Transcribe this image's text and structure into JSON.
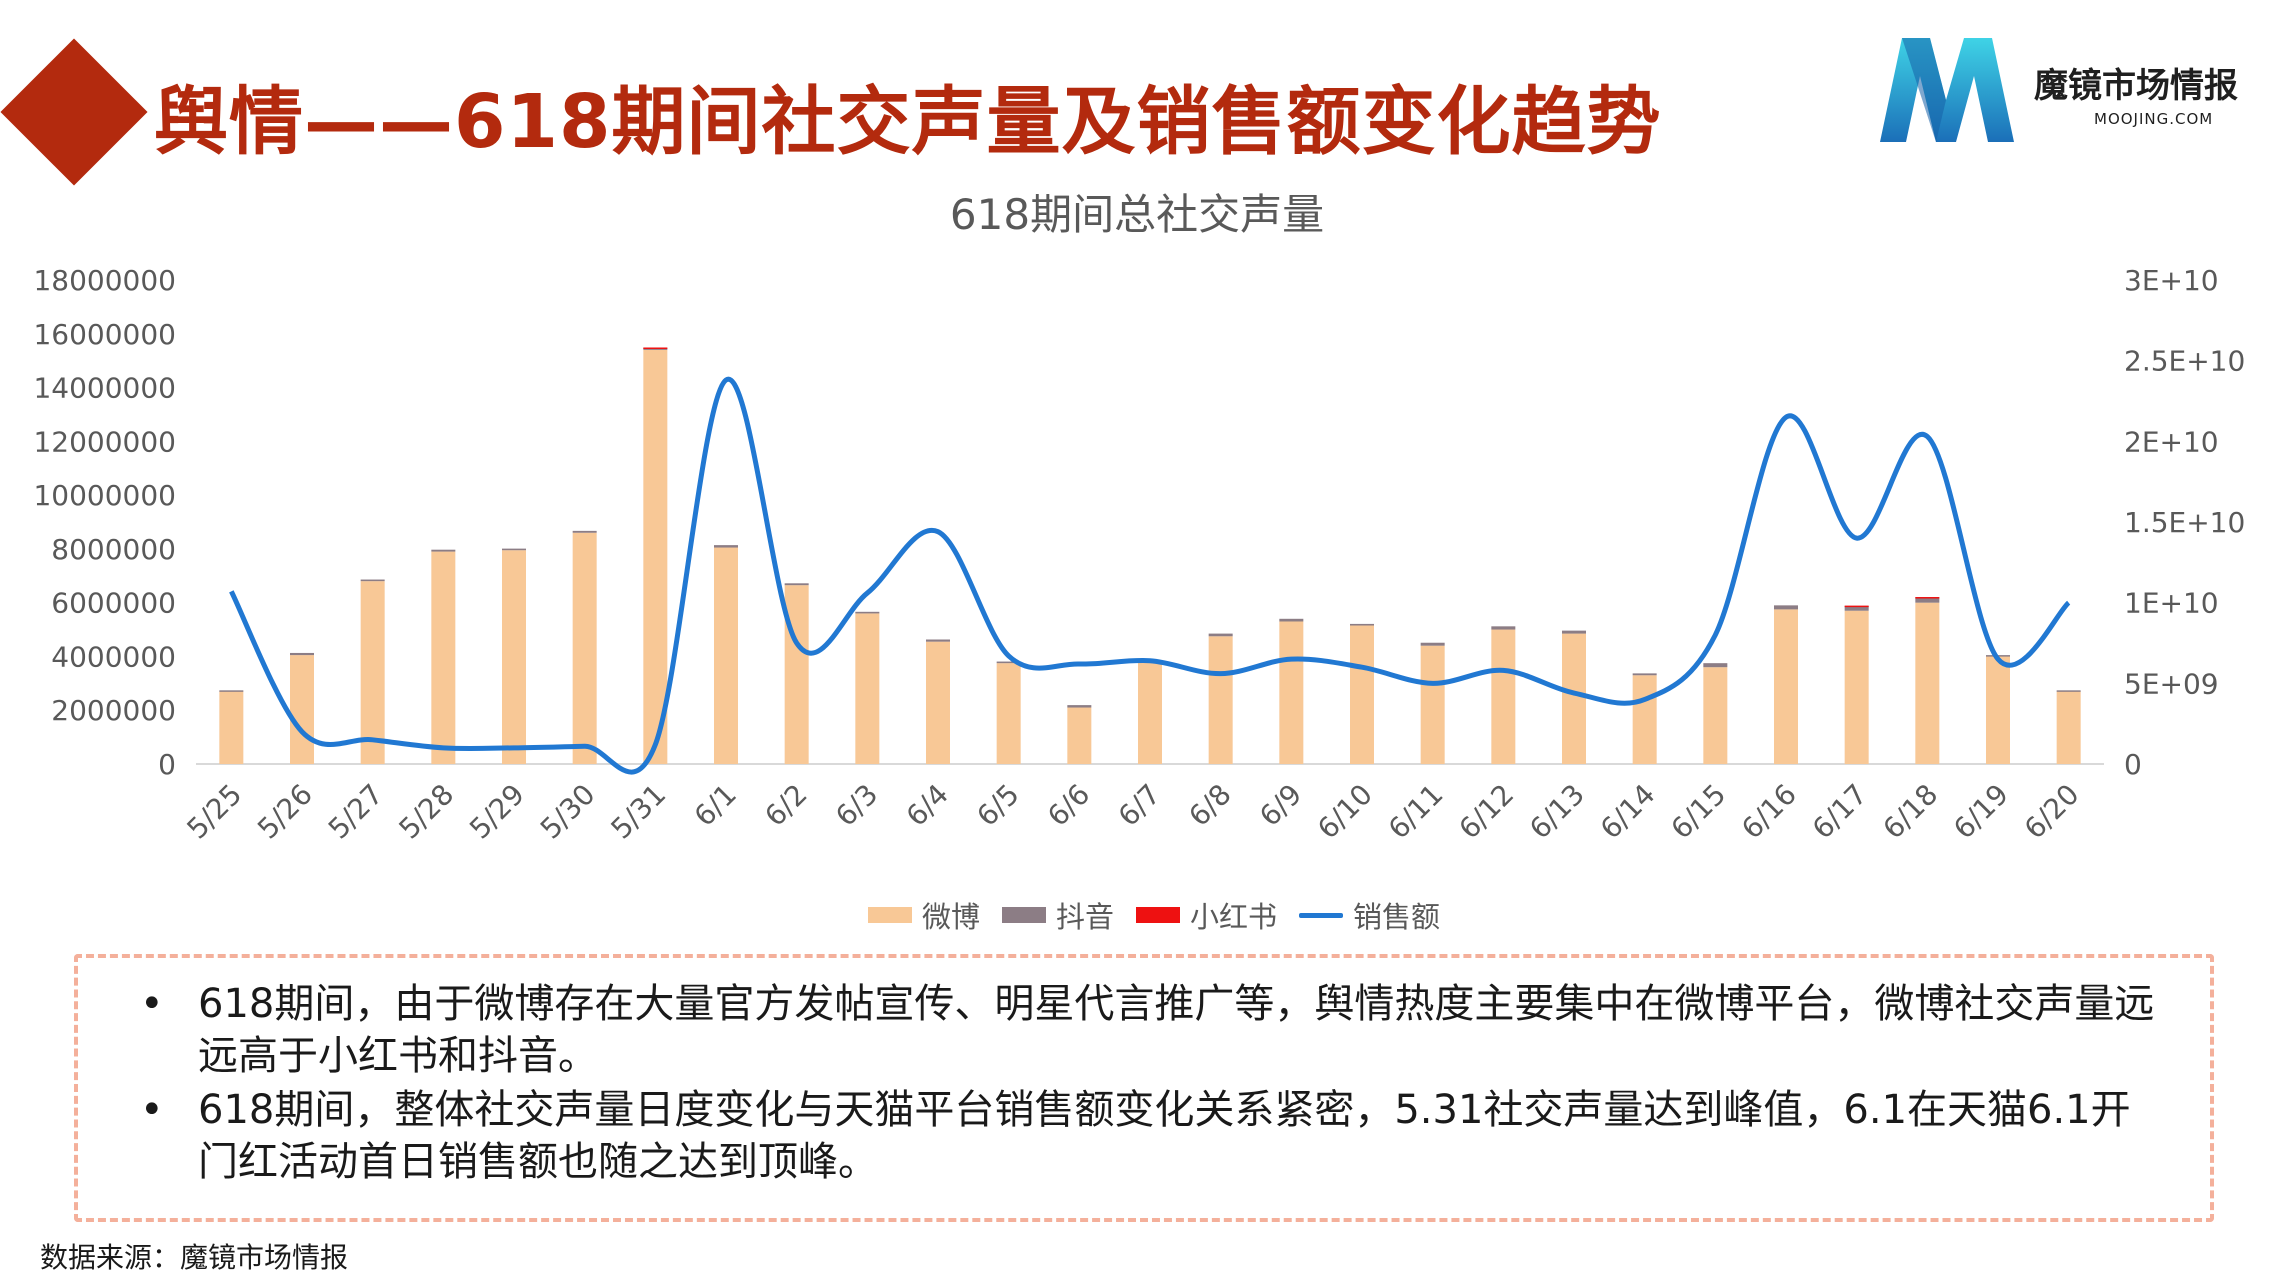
{
  "header": {
    "title": "舆情——618期间社交声量及销售额变化趋势"
  },
  "logo": {
    "name": "魔镜市场情报",
    "url_text": "MOOJING.COM"
  },
  "legend": {
    "items": [
      {
        "label": "微博",
        "color": "#f8c896",
        "kind": "bar"
      },
      {
        "label": "抖音",
        "color": "#8c7d85",
        "kind": "bar"
      },
      {
        "label": "小红书",
        "color": "#ee1111",
        "kind": "bar"
      },
      {
        "label": "销售额",
        "color": "#2178d2",
        "kind": "line"
      }
    ]
  },
  "chart_data": {
    "type": "bar",
    "title": "618期间总社交声量",
    "categories": [
      "5/25",
      "5/26",
      "5/27",
      "5/28",
      "5/29",
      "5/30",
      "5/31",
      "6/1",
      "6/2",
      "6/3",
      "6/4",
      "6/5",
      "6/6",
      "6/7",
      "6/8",
      "6/9",
      "6/10",
      "6/11",
      "6/12",
      "6/13",
      "6/14",
      "6/15",
      "6/16",
      "6/17",
      "6/18",
      "6/19",
      "6/20"
    ],
    "y_ticks": [
      "0",
      "2000000",
      "4000000",
      "6000000",
      "8000000",
      "10000000",
      "12000000",
      "14000000",
      "16000000",
      "18000000"
    ],
    "y2_ticks": [
      "0",
      "5E+09",
      "1E+10",
      "1.5E+10",
      "2E+10",
      "2.5E+10",
      "3E+10"
    ],
    "ylim": [
      0,
      18000000
    ],
    "y2lim": [
      0,
      30000000000
    ],
    "stacked": true,
    "series": [
      {
        "name": "微博",
        "color": "#f8c896",
        "axis": "left",
        "values": [
          2700000,
          4050000,
          6800000,
          7900000,
          7950000,
          8600000,
          15400000,
          8050000,
          6650000,
          5600000,
          4550000,
          3750000,
          2100000,
          3800000,
          4750000,
          5300000,
          5150000,
          4400000,
          5000000,
          4850000,
          3300000,
          3600000,
          5750000,
          5700000,
          6000000,
          4000000,
          2700000
        ]
      },
      {
        "name": "抖音",
        "color": "#8c7d85",
        "axis": "left",
        "values": [
          40000,
          80000,
          60000,
          70000,
          60000,
          70000,
          80000,
          90000,
          70000,
          60000,
          80000,
          60000,
          90000,
          40000,
          100000,
          100000,
          60000,
          110000,
          120000,
          110000,
          70000,
          150000,
          150000,
          180000,
          200000,
          50000,
          40000
        ]
      },
      {
        "name": "小红书",
        "color": "#ee1111",
        "axis": "left",
        "values": [
          0,
          0,
          0,
          0,
          0,
          0,
          10000,
          0,
          0,
          0,
          0,
          0,
          0,
          0,
          0,
          0,
          0,
          0,
          0,
          0,
          0,
          0,
          0,
          10000,
          10000,
          0,
          0
        ]
      },
      {
        "name": "销售额",
        "color": "#2178d2",
        "axis": "right",
        "type": "line",
        "values": [
          10700000000,
          2000000000,
          1500000000,
          1000000000,
          1000000000,
          1100000000,
          1200000000,
          23800000000,
          7500000000,
          10600000000,
          14400000000,
          6700000000,
          6200000000,
          6400000000,
          5600000000,
          6500000000,
          6000000000,
          5000000000,
          5800000000,
          4400000000,
          4000000000,
          8000000000,
          21500000000,
          14000000000,
          20300000000,
          6500000000,
          10000000000
        ]
      }
    ],
    "grid": false,
    "legend_position": "bottom"
  },
  "notes": {
    "bullet_glyph": "•",
    "items": [
      "618期间，由于微博存在大量官方发帖宣传、明星代言推广等，舆情热度主要集中在微博平台，微博社交声量远远高于小红书和抖音。",
      "618期间，整体社交声量日度变化与天猫平台销售额变化关系紧密，5.31社交声量达到峰值，6.1在天猫6.1开门红活动首日销售额也随之达到顶峰。"
    ]
  },
  "footer": {
    "source": "数据来源：魔镜市场情报"
  }
}
